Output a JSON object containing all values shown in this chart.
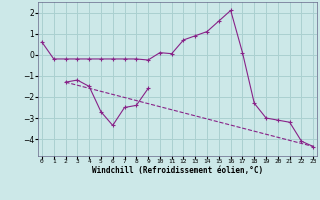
{
  "xlabel": "Windchill (Refroidissement éolien,°C)",
  "background_color": "#cce8e8",
  "grid_color": "#aad0d0",
  "line_color": "#882288",
  "x_hours": [
    0,
    1,
    2,
    3,
    4,
    5,
    6,
    7,
    8,
    9,
    10,
    11,
    12,
    13,
    14,
    15,
    16,
    17,
    18,
    19,
    20,
    21,
    22,
    23
  ],
  "series1": [
    0.6,
    -0.2,
    -0.2,
    -0.2,
    -0.2,
    -0.2,
    -0.2,
    -0.2,
    -0.2,
    -0.25,
    0.1,
    0.05,
    0.7,
    0.9,
    1.1,
    1.6,
    2.1,
    0.1,
    -2.3,
    -3.0,
    -3.1,
    -3.2,
    -4.1,
    -4.35
  ],
  "series2_x": [
    2,
    3,
    4,
    5,
    6,
    7,
    8,
    9
  ],
  "series2_y": [
    -1.3,
    -1.2,
    -1.5,
    -2.7,
    -3.35,
    -2.5,
    -2.4,
    -1.6
  ],
  "series3_x": [
    2,
    23
  ],
  "series3_y": [
    -1.3,
    -4.35
  ],
  "ylim": [
    -4.8,
    2.5
  ],
  "yticks": [
    -4,
    -3,
    -2,
    -1,
    0,
    1,
    2
  ],
  "xlim": [
    -0.3,
    23.3
  ],
  "xtick_labels": [
    "0",
    "1",
    "2",
    "3",
    "4",
    "5",
    "6",
    "7",
    "8",
    "9",
    "10",
    "11",
    "12",
    "13",
    "14",
    "15",
    "16",
    "17",
    "18",
    "19",
    "20",
    "21",
    "22",
    "23"
  ]
}
